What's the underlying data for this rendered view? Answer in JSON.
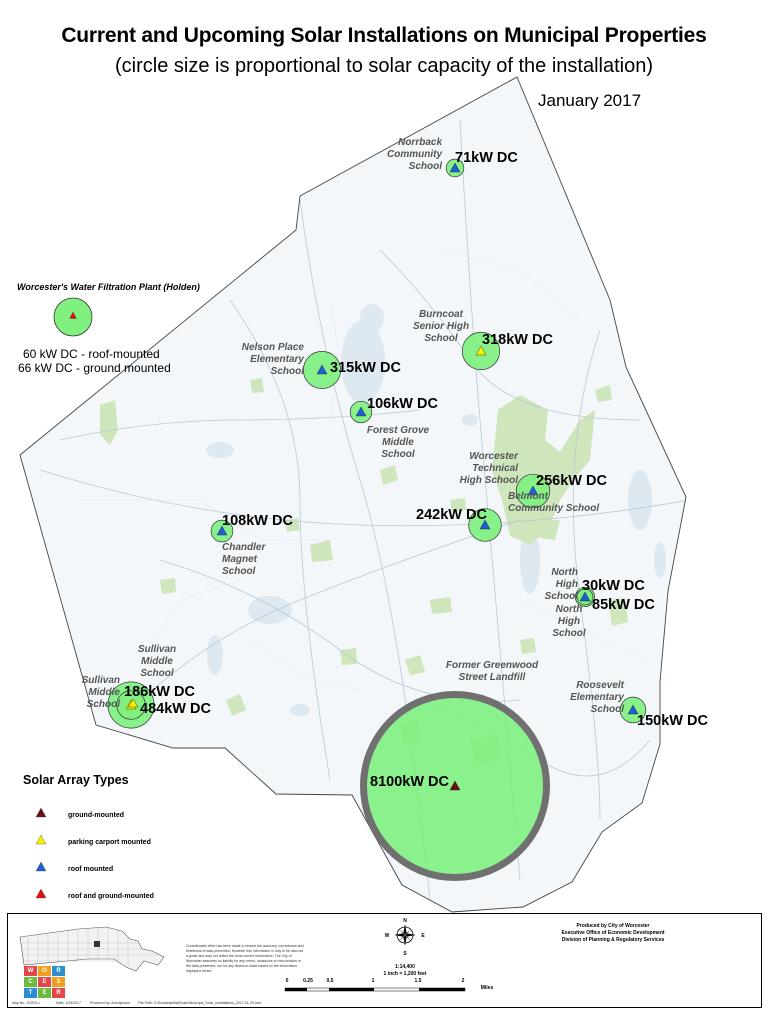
{
  "header": {
    "title": "Current and Upcoming Solar Installations on Municipal Properties",
    "subtitle": "(circle size is proportional to solar capacity of the installation)",
    "date": "January 2017"
  },
  "colors": {
    "circle_fill": "#80f080",
    "circle_stroke": "#333333",
    "landfill_ring": "#707070",
    "boundary": "#444444",
    "park_green": "#c9e2b4",
    "water": "#dfe9f2",
    "ground_mounted": "#6b0f0f",
    "parking_carport_mounted": "#f5f000",
    "roof_mounted": "#1f5fd6",
    "roof_and_ground_mounted": "#e01010"
  },
  "installations": [
    {
      "capacity": "71kW DC",
      "site": "Norrback\nCommunity\nSchool",
      "type": "roof_mounted"
    },
    {
      "capacity": "318kW DC",
      "site": "Burncoat\nSenior High\nSchool",
      "type": "parking_carport_mounted"
    },
    {
      "capacity": "315kW DC",
      "site": "Nelson Place\nElementary\nSchool",
      "type": "roof_mounted"
    },
    {
      "capacity": "106kW DC",
      "site": "Forest Grove\nMiddle\nSchool",
      "type": "roof_mounted"
    },
    {
      "capacity": "256kW DC",
      "site": "Worcester\nTechnical\nHigh School",
      "type": "roof_mounted"
    },
    {
      "capacity": "242kW DC",
      "site": "Belmont\nCommunity School",
      "type": "roof_mounted"
    },
    {
      "capacity": "108kW DC",
      "site": "Chandler\nMagnet\nSchool",
      "type": "roof_mounted"
    },
    {
      "capacity": "30kW DC",
      "site": "North\nHigh\nSchool",
      "type": "roof_mounted"
    },
    {
      "capacity": "85kW DC",
      "site": "North\nHigh\nSchool",
      "type": "roof_mounted"
    },
    {
      "capacity": "186kW DC",
      "site": "Sullivan\nMiddle\nSchool",
      "type": "parking_carport_mounted"
    },
    {
      "capacity": "484kW DC",
      "site": "Sullivan\nMiddle\nSchool",
      "type": "roof_mounted"
    },
    {
      "capacity": "150kW DC",
      "site": "Roosevelt\nElementary\nSchool",
      "type": "roof_mounted"
    },
    {
      "capacity": "8100kW DC",
      "site": "Former Greenwood\nStreet Landfill",
      "type": "ground_mounted"
    }
  ],
  "holden": {
    "label": "Worcester's Water Filtration Plant (Holden)",
    "line1": "60 kW DC - roof-mounted",
    "line2": "66 kW DC - ground mounted",
    "type": "roof_and_ground_mounted"
  },
  "legend": {
    "title": "Solar Array Types",
    "items": [
      {
        "label": "ground-mounted",
        "color": "#6b0f0f"
      },
      {
        "label": "parking carport mounted",
        "color": "#f5f000"
      },
      {
        "label": "roof mounted",
        "color": "#1f5fd6"
      },
      {
        "label": "roof and ground-mounted",
        "color": "#e01010"
      }
    ]
  },
  "footer": {
    "logo_letters": [
      "W",
      "O",
      "R",
      "C",
      "E",
      "S",
      "T",
      "E",
      "R"
    ],
    "logo_colors": [
      "#e2474a",
      "#f0a020",
      "#2a8fd0",
      "#6cbb3c",
      "#e2474a",
      "#f0a020",
      "#2a8fd0",
      "#6cbb3c",
      "#e2474a"
    ],
    "disclaimer": "Considerable effort has been made to ensure the accuracy, correctness and timeliness of data presented. However this information is only to be used as a guide and may not reflect the most current information. The City of Worcester assumes no liability for any errors, omissions or inaccuracies in the data presented, nor for any decision made based on the information displayed herein.",
    "compass": {
      "n": "N",
      "s": "S",
      "e": "E",
      "w": "W"
    },
    "scale_ratio": "1:14,400",
    "scale_inch": "1 inch = 1,200 feet",
    "scale_ticks": [
      "0",
      "0.25",
      "0.5",
      "1",
      "1.5",
      "2"
    ],
    "scale_unit": "Miles",
    "producer_line1": "Produced by City of Worcester",
    "producer_line2": "Executive Office of Economic Development",
    "producer_line3": "Division of Planning & Regulatory Services",
    "bottom_left": "Map No.: EOED-x",
    "bottom_date": "Date: 1/26/2017",
    "bottom_by": "Produced by: Anonymous",
    "bottom_file": "File Path: Z:\\Sustainability\\Solar\\Municipal_Solar_Installations_2017-01-25.mxd"
  }
}
